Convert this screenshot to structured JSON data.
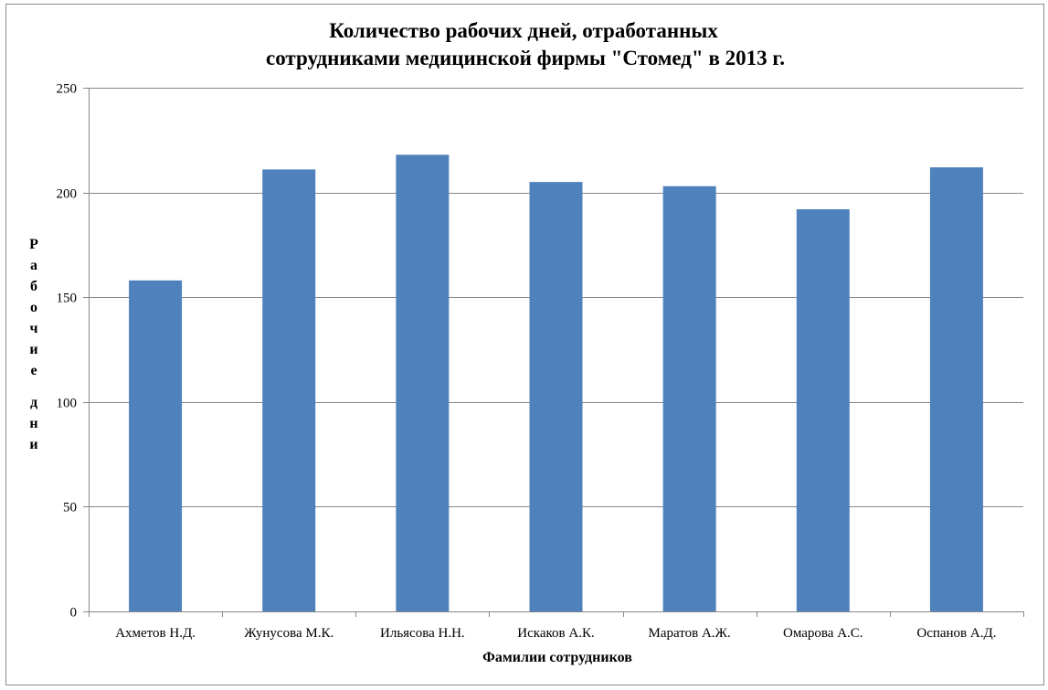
{
  "chart_data": {
    "type": "bar",
    "title": "Количество рабочих дней, отработанных сотрудниками медицинской фирмы \"Стомед\" в 2013 г.",
    "title_lines": [
      "Количество рабочих дней, отработанных",
      "сотрудниками медицинской фирмы \"Стомед\" в 2013 г."
    ],
    "categories": [
      "Ахметов Н.Д.",
      "Жунусова М.К.",
      "Ильясова Н.Н.",
      "Искаков А.К.",
      "Маратов А.Ж.",
      "Омарова А.С.",
      "Оспанов А.Д."
    ],
    "values": [
      158,
      211,
      218,
      205,
      203,
      192,
      212
    ],
    "xlabel": "Фамилии сотрудников",
    "ylabel": "Рабочие дни",
    "ylim": [
      0,
      250
    ],
    "yticks": [
      0,
      50,
      100,
      150,
      200,
      250
    ],
    "grid": true,
    "legend": "none",
    "bar_color": "#4F81BD",
    "grid_color": "#868686"
  }
}
